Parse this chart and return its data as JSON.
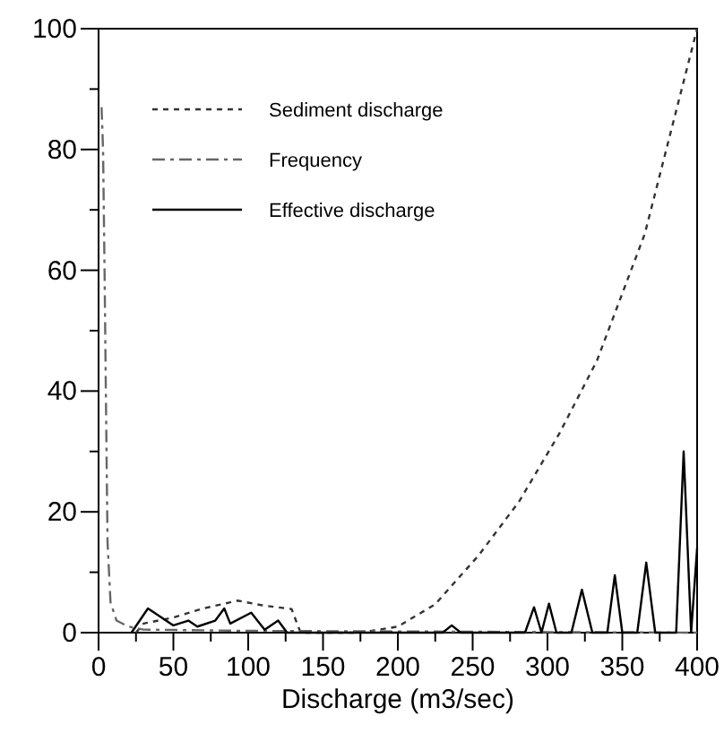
{
  "chart_data": {
    "type": "line",
    "xlabel": "Discharge (m3/sec)",
    "xlim": [
      0,
      400
    ],
    "ylim": [
      0,
      100
    ],
    "xticks": [
      0,
      {
        "value": 25,
        "label": null
      },
      50,
      {
        "value": 75,
        "label": null
      },
      100,
      {
        "value": 125,
        "label": null
      },
      150,
      {
        "value": 175,
        "label": null
      },
      200,
      {
        "value": 225,
        "label": null
      },
      250,
      {
        "value": 275,
        "label": null
      },
      300,
      {
        "value": 325,
        "label": null
      },
      350,
      {
        "value": 375,
        "label": null
      },
      400
    ],
    "yticks": [
      0,
      {
        "value": 10,
        "label": null
      },
      20,
      {
        "value": 30,
        "label": null
      },
      40,
      {
        "value": 50,
        "label": null
      },
      60,
      {
        "value": 70,
        "label": null
      },
      80,
      {
        "value": 90,
        "label": null
      },
      100
    ],
    "grid": false,
    "legend": "top left",
    "series": [
      {
        "name": "Sediment discharge",
        "color": "#333333",
        "line_style": "dotted",
        "x": [
          25,
          30,
          50,
          70,
          93,
          110,
          129,
          135,
          175,
          200,
          225,
          254,
          281,
          308,
          333,
          365,
          400
        ],
        "values": [
          0,
          1.5,
          2.5,
          4,
          5.3,
          4.5,
          3.9,
          0,
          0,
          1,
          4.7,
          12.8,
          21.7,
          33,
          45,
          66,
          100
        ]
      },
      {
        "name": "Frequency",
        "color": "#666666",
        "line_style": "dashed",
        "x": [
          2,
          3,
          4,
          5,
          6,
          8,
          12,
          20,
          30,
          100,
          200,
          300,
          400
        ],
        "values": [
          87,
          80,
          60,
          37,
          15,
          5,
          2,
          1,
          0.5,
          0.3,
          0.2,
          0.1,
          0
        ]
      },
      {
        "name": "Effective discharge",
        "color": "#000000",
        "line_style": "solid",
        "x": [
          22,
          33,
          50,
          60,
          66,
          78,
          84,
          88,
          102,
          111,
          120,
          126,
          230,
          236,
          242,
          285,
          291,
          296,
          301,
          306,
          316,
          323,
          330,
          340,
          345,
          350,
          360,
          366,
          372,
          386,
          391,
          396,
          400
        ],
        "values": [
          0,
          4,
          1.2,
          2,
          1,
          2,
          4,
          1.5,
          3.3,
          0.5,
          2,
          0,
          0,
          1.2,
          0,
          0,
          4.2,
          0,
          4.8,
          0,
          0,
          7.1,
          0,
          0,
          9.5,
          0,
          0,
          11.6,
          0,
          0,
          30,
          0,
          14
        ]
      }
    ]
  }
}
